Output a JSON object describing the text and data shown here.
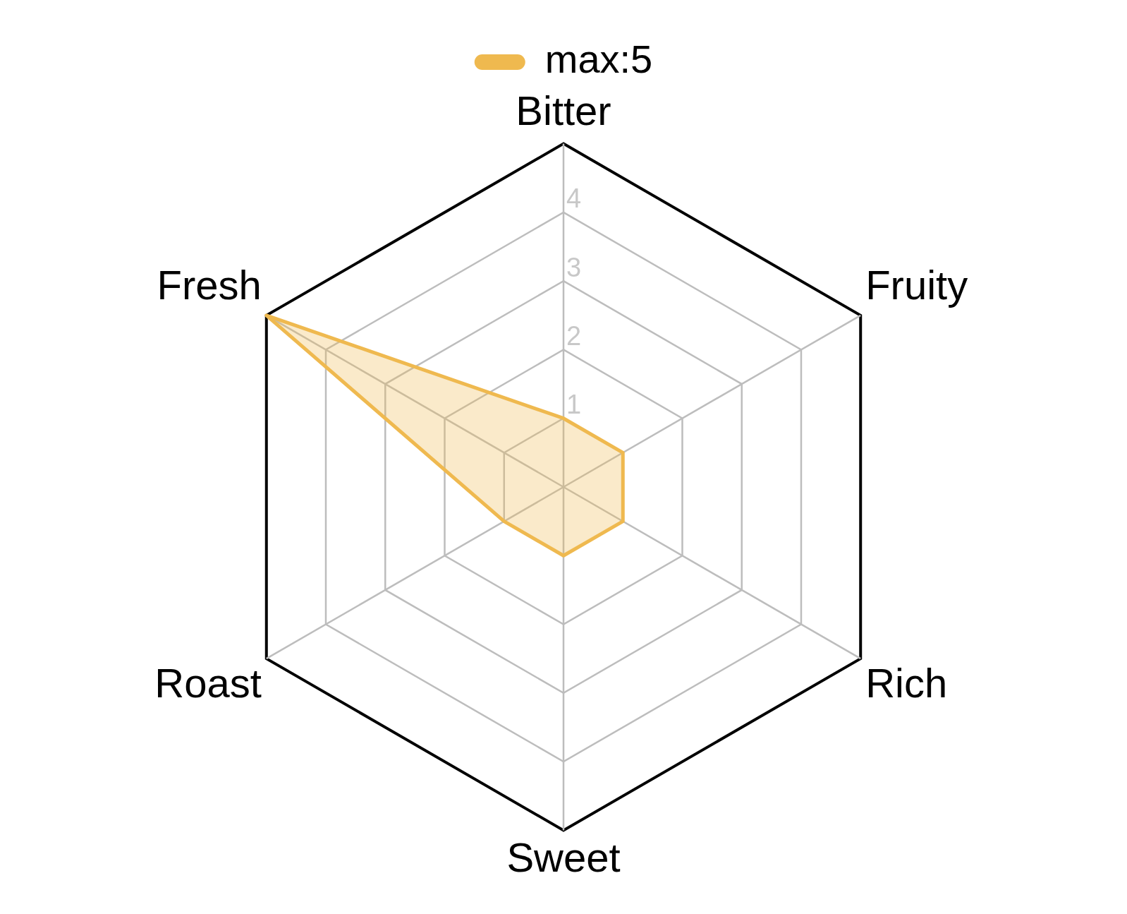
{
  "chart_data": {
    "type": "radar",
    "categories": [
      "Bitter",
      "Fruity",
      "Rich",
      "Sweet",
      "Roast",
      "Fresh"
    ],
    "series": [
      {
        "name": "max:5",
        "color": "#efb94f",
        "values": [
          1,
          1,
          1,
          1,
          1,
          5
        ]
      }
    ],
    "ylim": [
      0,
      5
    ],
    "yticks": [
      1,
      2,
      3,
      4
    ],
    "grid": true,
    "legend": "top",
    "marker": "none"
  }
}
